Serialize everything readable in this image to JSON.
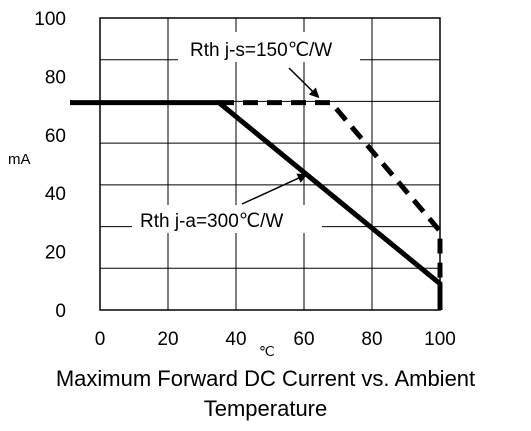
{
  "chart_data": {
    "type": "line",
    "title_lines": [
      "Maximum Forward DC Current vs. Ambient",
      "Temperature"
    ],
    "xlabel": "℃",
    "ylabel": "mA",
    "xlim": [
      0,
      100
    ],
    "ylim": [
      0,
      100
    ],
    "x_ticks": [
      0,
      20,
      40,
      60,
      80,
      100
    ],
    "y_ticks": [
      0,
      20,
      40,
      60,
      80,
      100
    ],
    "x_tick_labels": [
      "0",
      "20",
      "40",
      "60",
      "80",
      "100"
    ],
    "y_tick_labels": [
      "0",
      "20",
      "40",
      "60",
      "80",
      "100"
    ],
    "grid": true,
    "series": [
      {
        "name": "Rth j-a=300℃/W",
        "style": "solid",
        "color": "#000000",
        "points": [
          [
            0,
            71
          ],
          [
            35,
            71
          ],
          [
            100,
            9
          ],
          [
            100,
            0
          ]
        ]
      },
      {
        "name": "Rth j-s=150℃/W",
        "style": "dashed",
        "color": "#000000",
        "points": [
          [
            35,
            71
          ],
          [
            68,
            71
          ],
          [
            100,
            27
          ],
          [
            100,
            0
          ]
        ]
      }
    ],
    "annotations": [
      {
        "text": "Rth j-s=150℃/W",
        "series": 1,
        "arrow_to": [
          65,
          71
        ]
      },
      {
        "text": "Rth j-a=300℃/W",
        "series": 0,
        "arrow_to": [
          62,
          48
        ]
      }
    ]
  }
}
